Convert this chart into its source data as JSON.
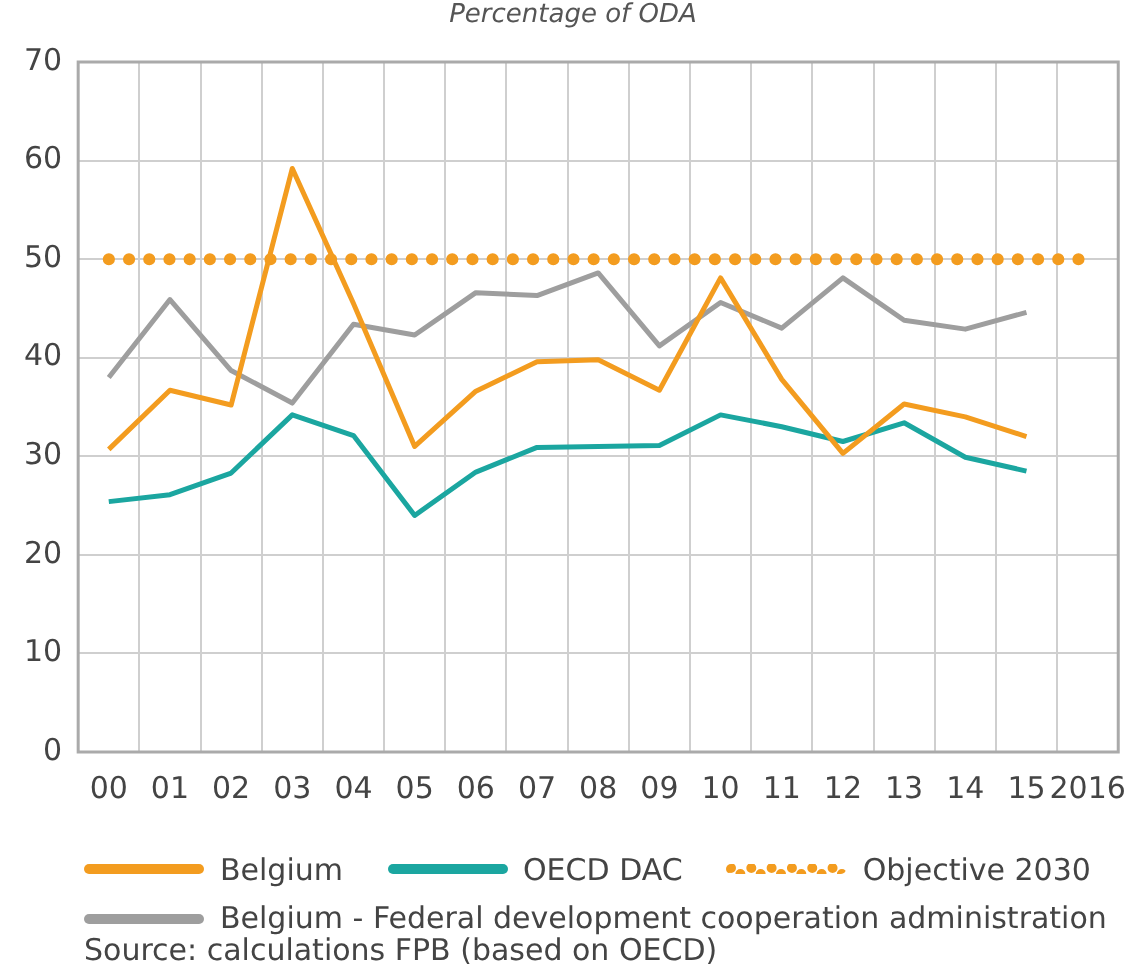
{
  "chart_data": {
    "type": "line",
    "subtitle": "Percentage of ODA",
    "categories": [
      "00",
      "01",
      "02",
      "03",
      "04",
      "05",
      "06",
      "07",
      "08",
      "09",
      "10",
      "11",
      "12",
      "13",
      "14",
      "15",
      "2016"
    ],
    "series": [
      {
        "name": "Belgium",
        "color": "#f39c1f",
        "values": [
          30.7,
          36.7,
          35.2,
          59.2,
          45.5,
          31,
          36.6,
          39.6,
          39.8,
          36.7,
          48.1,
          37.8,
          30.3,
          35.3,
          34,
          32,
          null
        ]
      },
      {
        "name": "OECD DAC",
        "color": "#1ba6a0",
        "values": [
          25.4,
          26.1,
          28.3,
          34.2,
          32.1,
          24,
          28.4,
          30.9,
          31,
          31.1,
          34.2,
          33,
          31.5,
          33.4,
          29.9,
          28.5,
          null
        ]
      },
      {
        "name": "Objective 2030",
        "color": "#f39c1f",
        "line_style": "dotted",
        "values": [
          50,
          50,
          50,
          50,
          50,
          50,
          50,
          50,
          50,
          50,
          50,
          50,
          50,
          50,
          50,
          50,
          50
        ]
      },
      {
        "name": "Belgium - Federal development cooperation administration",
        "color": "#9e9e9e",
        "values": [
          38,
          45.9,
          38.7,
          35.4,
          43.4,
          42.3,
          46.6,
          46.3,
          48.6,
          41.2,
          45.6,
          43,
          48.1,
          43.8,
          42.9,
          44.6,
          null
        ]
      }
    ],
    "ylim": [
      0,
      70
    ],
    "yticks": [
      0,
      10,
      20,
      30,
      40,
      50,
      60,
      70
    ],
    "grid": true,
    "legend": "bottom",
    "marker": "none",
    "line_style": "solid",
    "annotations": [
      "Source: calculations FPB (based on OECD)"
    ]
  }
}
